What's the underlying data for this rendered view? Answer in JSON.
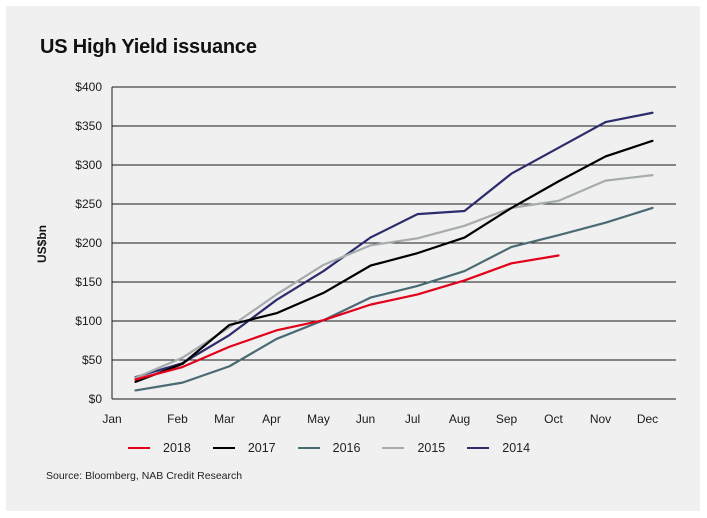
{
  "chart_data": {
    "type": "line",
    "title": "US High Yield issuance",
    "ylabel": "US$bn",
    "xlabel": "",
    "ylim": [
      0,
      400
    ],
    "yticks": [
      0,
      50,
      100,
      150,
      200,
      250,
      300,
      350,
      400
    ],
    "ytick_labels": [
      "$0",
      "$50",
      "$100",
      "$150",
      "$200",
      "$250",
      "$300",
      "$350",
      "$400"
    ],
    "months": [
      "Jan",
      "Feb",
      "Mar",
      "Apr",
      "May",
      "Jun",
      "Jul",
      "Aug",
      "Sep",
      "Oct",
      "Nov",
      "Dec"
    ],
    "grid": "horizontal",
    "legend_position": "bottom",
    "series": [
      {
        "name": "2018",
        "color": "#e2001a",
        "x": [
          0.5,
          1.5,
          2.5,
          3.5,
          4.5,
          5.5,
          6.5,
          7.5,
          8.5,
          9.5
        ],
        "y": [
          25,
          41,
          67,
          88,
          101,
          121,
          134,
          152,
          174,
          184
        ]
      },
      {
        "name": "2017",
        "color": "#000000",
        "x": [
          0.5,
          1.5,
          2.5,
          3.5,
          4.5,
          5.5,
          6.5,
          7.5,
          8.5,
          9.5,
          10.5,
          11.5
        ],
        "y": [
          22,
          45,
          95,
          110,
          136,
          171,
          187,
          207,
          245,
          279,
          311,
          331
        ]
      },
      {
        "name": "2016",
        "color": "#4a6a74",
        "x": [
          0.5,
          1.5,
          2.5,
          3.5,
          4.5,
          5.5,
          6.5,
          7.5,
          8.5,
          9.5,
          10.5,
          11.5
        ],
        "y": [
          11,
          21,
          42,
          77,
          101,
          130,
          145,
          164,
          195,
          210,
          226,
          245
        ]
      },
      {
        "name": "2015",
        "color": "#a6abae",
        "x": [
          0.5,
          1.5,
          2.5,
          3.5,
          4.5,
          5.5,
          6.5,
          7.5,
          8.5,
          9.5,
          10.5,
          11.5
        ],
        "y": [
          27,
          53,
          92,
          134,
          172,
          197,
          206,
          222,
          245,
          254,
          280,
          287
        ]
      },
      {
        "name": "2014",
        "color": "#2c2c6c",
        "x": [
          0.5,
          1.5,
          2.5,
          3.5,
          4.5,
          5.5,
          6.5,
          7.5,
          8.5,
          9.5,
          10.5,
          11.5
        ],
        "y": [
          28,
          46,
          82,
          127,
          164,
          207,
          237,
          241,
          289,
          322,
          355,
          367
        ]
      }
    ]
  },
  "source_text": "Source: Bloomberg, NAB Credit Research"
}
